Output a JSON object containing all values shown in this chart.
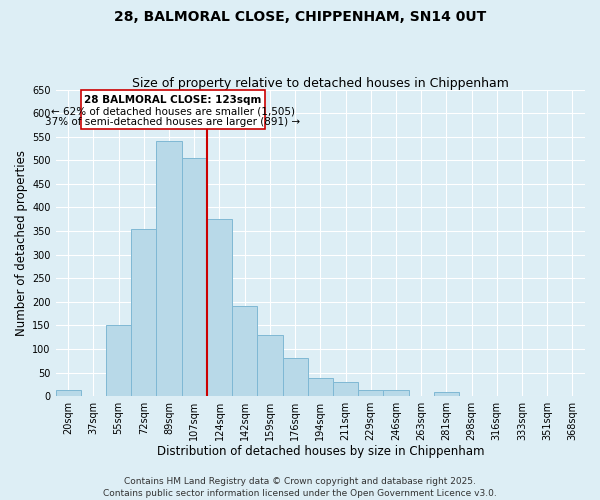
{
  "title": "28, BALMORAL CLOSE, CHIPPENHAM, SN14 0UT",
  "subtitle": "Size of property relative to detached houses in Chippenham",
  "xlabel": "Distribution of detached houses by size in Chippenham",
  "ylabel": "Number of detached properties",
  "bar_labels": [
    "20sqm",
    "37sqm",
    "55sqm",
    "72sqm",
    "89sqm",
    "107sqm",
    "124sqm",
    "142sqm",
    "159sqm",
    "176sqm",
    "194sqm",
    "211sqm",
    "229sqm",
    "246sqm",
    "263sqm",
    "281sqm",
    "298sqm",
    "316sqm",
    "333sqm",
    "351sqm",
    "368sqm"
  ],
  "bar_values": [
    13,
    0,
    150,
    355,
    540,
    505,
    375,
    190,
    130,
    80,
    38,
    30,
    13,
    12,
    0,
    8,
    0,
    0,
    0,
    0,
    0
  ],
  "bar_color": "#b8d9e8",
  "bar_edge_color": "#7fb8d4",
  "vline_x": 6.0,
  "vline_color": "#cc0000",
  "annotation_title": "28 BALMORAL CLOSE: 123sqm",
  "annotation_line1": "← 62% of detached houses are smaller (1,505)",
  "annotation_line2": "37% of semi-detached houses are larger (891) →",
  "annotation_box_color": "#ffffff",
  "annotation_box_edge": "#cc0000",
  "ylim": [
    0,
    650
  ],
  "yticks": [
    0,
    50,
    100,
    150,
    200,
    250,
    300,
    350,
    400,
    450,
    500,
    550,
    600,
    650
  ],
  "bg_color": "#ddeef5",
  "plot_bg_color": "#ddeef5",
  "footer_line1": "Contains HM Land Registry data © Crown copyright and database right 2025.",
  "footer_line2": "Contains public sector information licensed under the Open Government Licence v3.0.",
  "title_fontsize": 10,
  "subtitle_fontsize": 9,
  "axis_label_fontsize": 8.5,
  "tick_fontsize": 7,
  "annotation_fontsize": 7.5,
  "footer_fontsize": 6.5
}
